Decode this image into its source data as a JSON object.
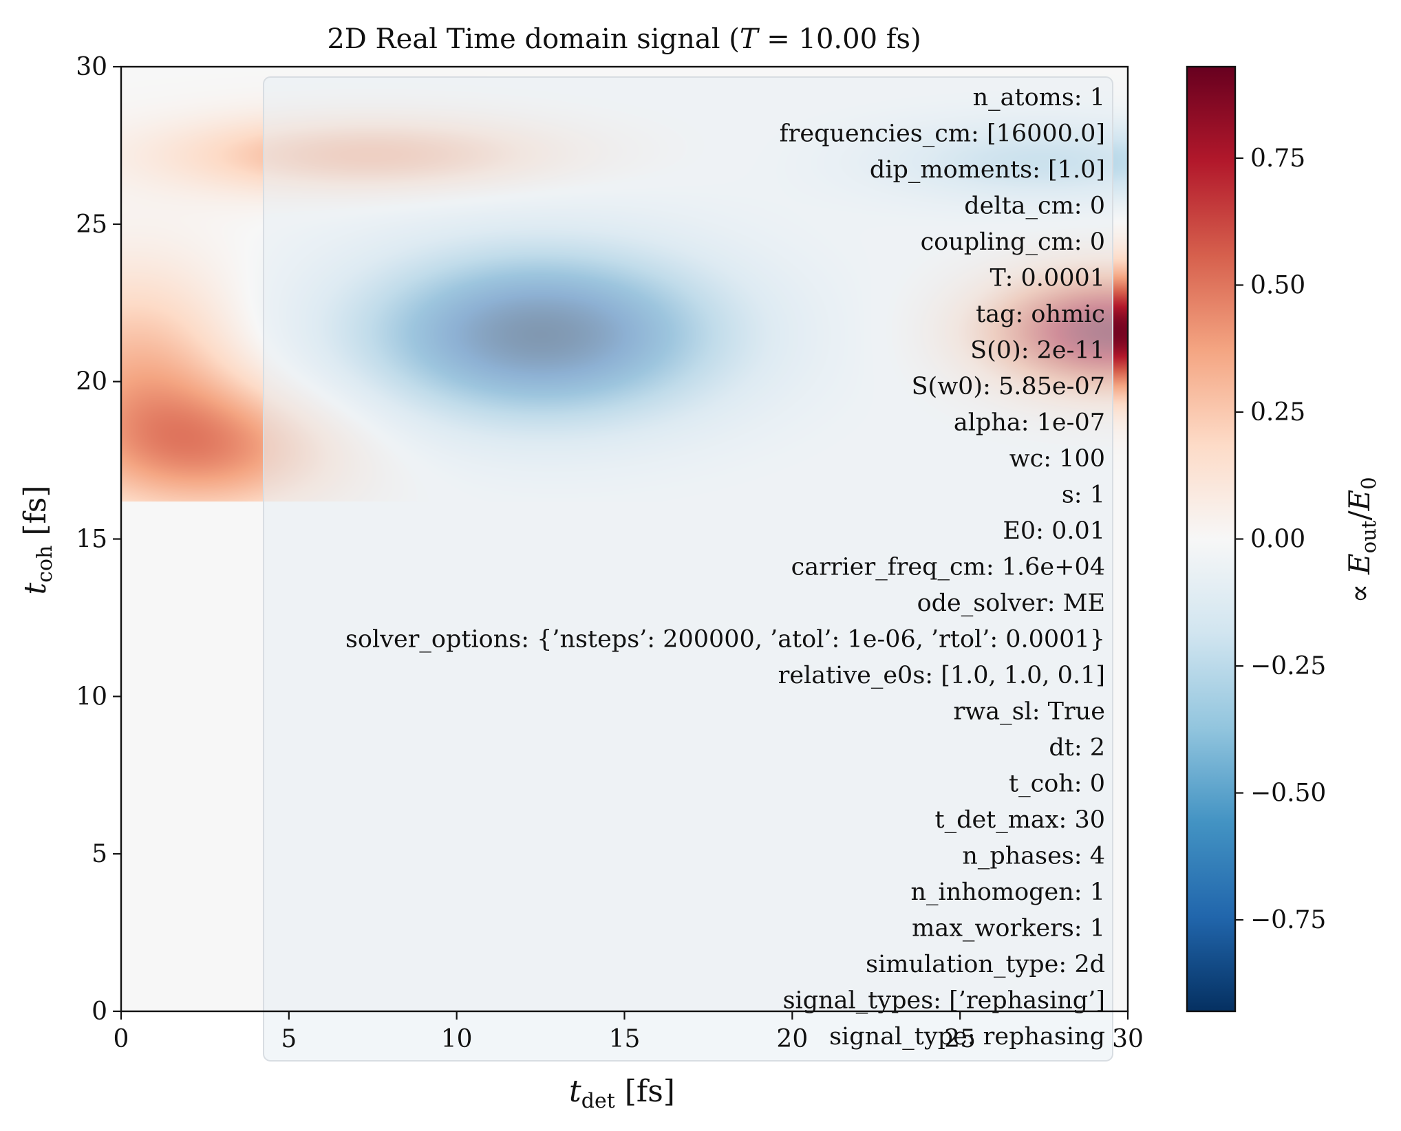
{
  "chart_data": {
    "type": "heatmap",
    "title_prefix": "2D Real Time domain signal (",
    "title_var": "T",
    "title_suffix": " = 10.00 fs)",
    "xlabel_var": "t",
    "xlabel_sub": "det",
    "xlabel_unit": " [fs]",
    "ylabel_var": "t",
    "ylabel_sub": "coh",
    "ylabel_unit": " [fs]",
    "xlim": [
      0,
      30
    ],
    "ylim": [
      0,
      30
    ],
    "x_ticks": [
      0,
      5,
      10,
      15,
      20,
      25,
      30
    ],
    "y_ticks": [
      0,
      5,
      10,
      15,
      20,
      25,
      30
    ],
    "colormap": "RdBu_r",
    "colorbar": {
      "range": [
        -0.93,
        0.93
      ],
      "ticks": [
        0.75,
        0.5,
        0.25,
        0.0,
        -0.25,
        -0.5,
        -0.75
      ],
      "tick_labels": [
        "0.75",
        "0.50",
        "0.25",
        "0.00",
        "−0.25",
        "−0.50",
        "−0.75"
      ],
      "label_prefix": "∝ ",
      "label_var": "E",
      "label_sub": "out",
      "label_mid": "/",
      "label_var2": "E",
      "label_sub2": "0"
    },
    "features": [
      {
        "t_det": 12.5,
        "t_coh": 21.5,
        "value": -0.93,
        "sigma_det": 3.8,
        "sigma_coh": 1.9
      },
      {
        "t_det": 29.5,
        "t_coh": 21.6,
        "value": 0.9,
        "sigma_det": 2.6,
        "sigma_coh": 1.3
      },
      {
        "t_det": 2.8,
        "t_coh": 17.9,
        "value": 0.4,
        "sigma_det": 3.0,
        "sigma_coh": 1.5
      },
      {
        "t_det": 0.5,
        "t_coh": 20.5,
        "value": 0.28,
        "sigma_det": 2.2,
        "sigma_coh": 2.2
      },
      {
        "t_det": 7.5,
        "t_coh": 27.2,
        "value": 0.36,
        "sigma_det": 4.0,
        "sigma_coh": 0.85
      },
      {
        "t_det": 27.5,
        "t_coh": 27.0,
        "value": -0.3,
        "sigma_det": 3.5,
        "sigma_coh": 0.9
      }
    ]
  },
  "info_box": {
    "lines": [
      "n_atoms: 1",
      "frequencies_cm: [16000.0]",
      "dip_moments: [1.0]",
      "delta_cm: 0",
      "coupling_cm: 0",
      "T: 0.0001",
      "tag: ohmic",
      "S(0): 2e-11",
      "S(w0): 5.85e-07",
      "alpha: 1e-07",
      "wc: 100",
      "s: 1",
      "E0: 0.01",
      "carrier_freq_cm: 1.6e+04",
      "ode_solver: ME",
      "solver_options: {’nsteps’: 200000, ’atol’: 1e-06, ’rtol’: 0.0001}",
      "relative_e0s: [1.0, 1.0, 0.1]",
      "rwa_sl: True",
      "dt: 2",
      "t_coh: 0",
      "t_det_max: 30",
      "n_phases: 4",
      "n_inhomogen: 1",
      "max_workers: 1",
      "simulation_type: 2d",
      "signal_types: [’rephasing’]",
      "signal_type: rephasing"
    ]
  }
}
